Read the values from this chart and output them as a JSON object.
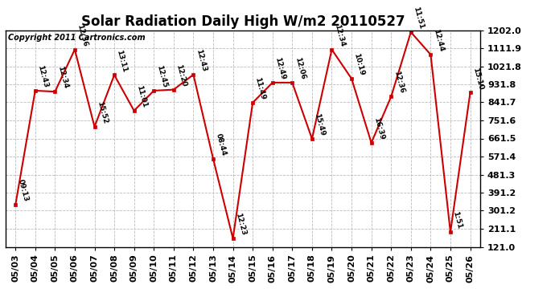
{
  "title": "Solar Radiation Daily High W/m2 20110527",
  "copyright": "Copyright 2011 Cartronics.com",
  "dates": [
    "05/03",
    "05/04",
    "05/05",
    "05/06",
    "05/07",
    "05/08",
    "05/09",
    "05/10",
    "05/11",
    "05/12",
    "05/13",
    "05/14",
    "05/15",
    "05/16",
    "05/17",
    "05/18",
    "05/19",
    "05/20",
    "05/21",
    "05/22",
    "05/23",
    "05/24",
    "05/25",
    "05/26"
  ],
  "values": [
    330,
    900,
    895,
    1105,
    720,
    978,
    800,
    900,
    905,
    980,
    560,
    163,
    840,
    940,
    940,
    660,
    1105,
    960,
    640,
    870,
    1192,
    1080,
    195,
    890
  ],
  "labels": [
    "09:13",
    "12:43",
    "12:34",
    "12:36",
    "15:52",
    "13:11",
    "11:01",
    "12:45",
    "12:20",
    "12:43",
    "08:44",
    "12:23",
    "11:49",
    "12:49",
    "12:06",
    "15:49",
    "12:34",
    "10:19",
    "16:39",
    "12:36",
    "11:51",
    "12:44",
    "1:51",
    "15:10"
  ],
  "line_color": "#cc0000",
  "marker_color": "#cc0000",
  "bg_color": "#ffffff",
  "grid_color": "#bbbbbb",
  "ylim_min": 121.0,
  "ylim_max": 1202.0,
  "yticks": [
    121.0,
    211.1,
    301.2,
    391.2,
    481.3,
    571.4,
    661.5,
    751.6,
    841.7,
    931.8,
    1021.8,
    1111.9,
    1202.0
  ],
  "title_fontsize": 12,
  "label_fontsize": 6.5,
  "copyright_fontsize": 7,
  "tick_fontsize": 8
}
